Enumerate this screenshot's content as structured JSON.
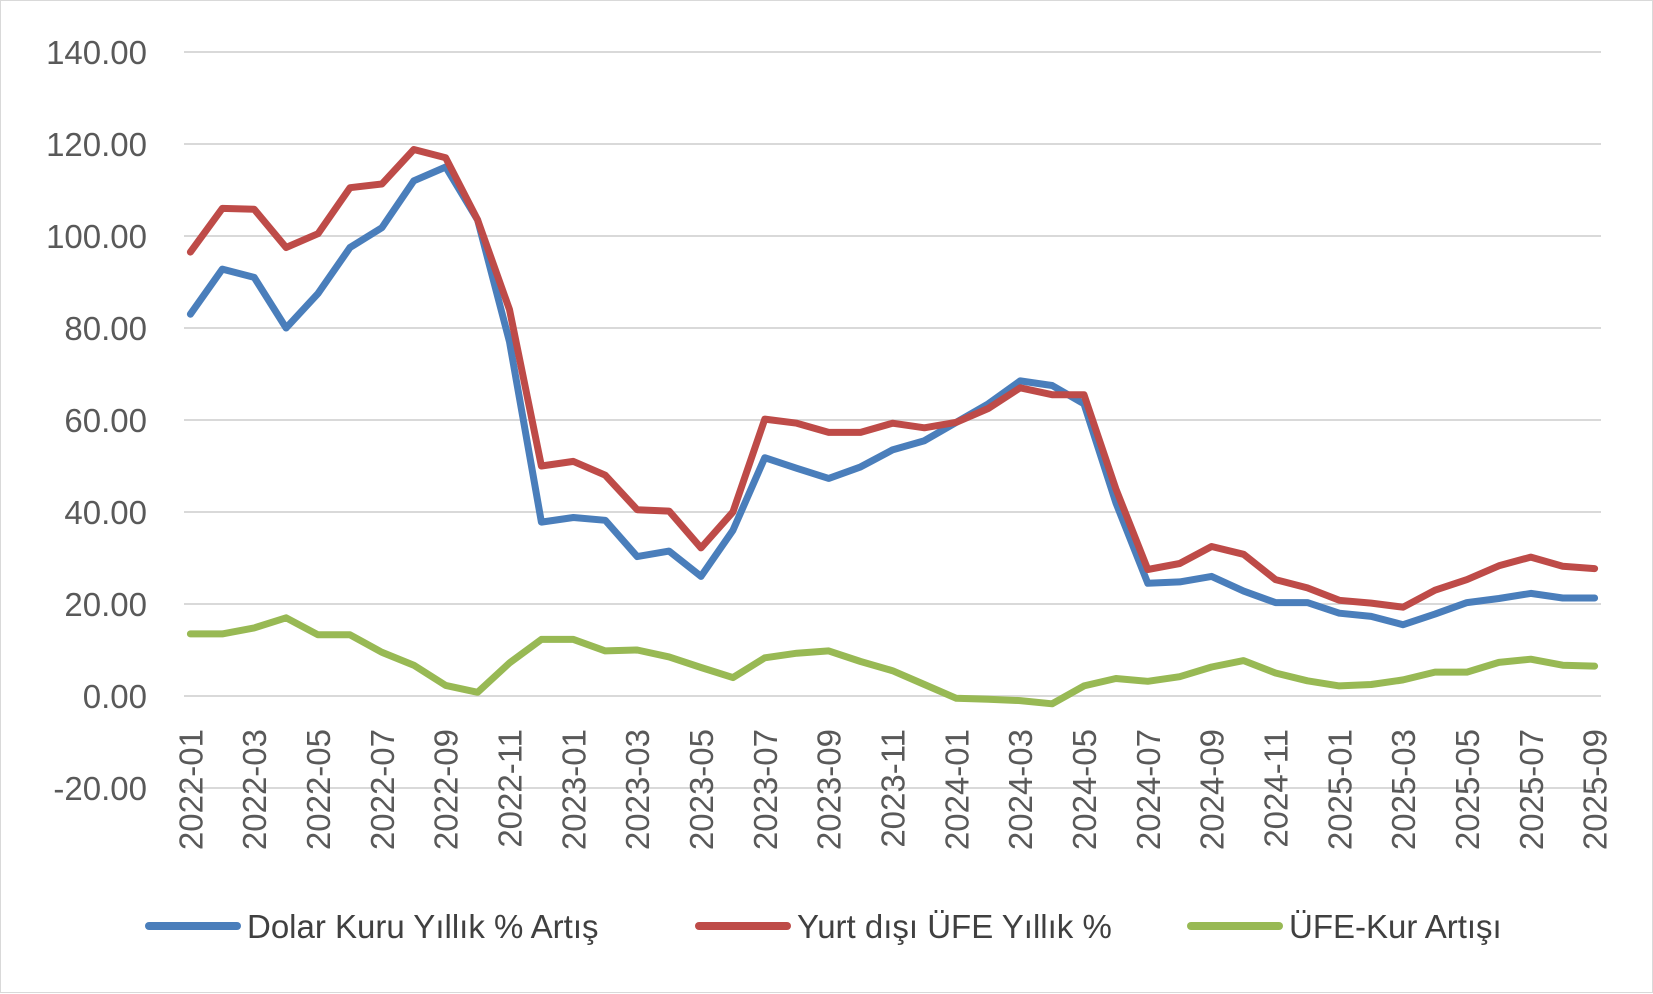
{
  "chart_data": {
    "type": "line",
    "title": "",
    "xlabel": "",
    "ylabel": "",
    "ylim": [
      -20,
      140
    ],
    "yticks": [
      "140.00",
      "120.00",
      "100.00",
      "80.00",
      "60.00",
      "40.00",
      "20.00",
      "0.00",
      "-20.00"
    ],
    "ytick_values": [
      140,
      120,
      100,
      80,
      60,
      40,
      20,
      0,
      -20
    ],
    "grid": "horizontal",
    "legend_position": "bottom",
    "x": [
      "2022-01",
      "2022-02",
      "2022-03",
      "2022-04",
      "2022-05",
      "2022-06",
      "2022-07",
      "2022-08",
      "2022-09",
      "2022-10",
      "2022-11",
      "2022-12",
      "2023-01",
      "2023-02",
      "2023-03",
      "2023-04",
      "2023-05",
      "2023-06",
      "2023-07",
      "2023-08",
      "2023-09",
      "2023-10",
      "2023-11",
      "2023-12",
      "2024-01",
      "2024-02",
      "2024-03",
      "2024-04",
      "2024-05",
      "2024-06",
      "2024-07",
      "2024-08",
      "2024-09",
      "2024-10",
      "2024-11",
      "2024-12",
      "2025-01",
      "2025-02",
      "2025-03",
      "2025-04",
      "2025-05",
      "2025-06",
      "2025-07",
      "2025-08",
      "2025-09"
    ],
    "xticks": [
      "2022-01",
      "2022-03",
      "2022-05",
      "2022-07",
      "2022-09",
      "2022-11",
      "2023-01",
      "2023-03",
      "2023-05",
      "2023-07",
      "2023-09",
      "2023-11",
      "2024-01",
      "2024-03",
      "2024-05",
      "2024-07",
      "2024-09",
      "2024-11",
      "2025-01",
      "2025-03",
      "2025-05",
      "2025-07",
      "2025-09"
    ],
    "series": [
      {
        "name": "Dolar Kuru Yıllık % Artış",
        "color": "#4a7ebb",
        "values": [
          83,
          92.8,
          91,
          80,
          87.5,
          97.5,
          101.8,
          112,
          115,
          103.5,
          77,
          37.8,
          38.8,
          38.2,
          30.3,
          31.5,
          26,
          36,
          51.8,
          49.5,
          47.3,
          49.8,
          53.5,
          55.5,
          59.5,
          63.5,
          68.5,
          67.5,
          63.5,
          42,
          24.5,
          24.8,
          26,
          22.8,
          20.3,
          20.3,
          18,
          17.3,
          15.5,
          17.8,
          20.3,
          21.2,
          22.3,
          21.3,
          21.3
        ]
      },
      {
        "name": "Yurt dışı ÜFE Yıllık %",
        "color": "#be4b48",
        "values": [
          96.5,
          106,
          105.8,
          97.5,
          100.5,
          110.5,
          111.3,
          118.8,
          117,
          103.5,
          84,
          50,
          51,
          48,
          40.5,
          40.2,
          32.2,
          40,
          60.2,
          59.3,
          57.3,
          57.3,
          59.3,
          58.3,
          59.5,
          62.5,
          67,
          65.5,
          65.5,
          45,
          27.5,
          28.8,
          32.5,
          30.8,
          25.3,
          23.5,
          20.8,
          20.2,
          19.3,
          23,
          25.3,
          28.3,
          30.2,
          28.2,
          27.7
        ]
      },
      {
        "name": "ÜFE-Kur Artışı",
        "color": "#98b954",
        "values": [
          13.5,
          13.5,
          14.8,
          17,
          13.3,
          13.3,
          9.5,
          6.7,
          2.3,
          0.8,
          7.2,
          12.3,
          12.3,
          9.8,
          10,
          8.5,
          6.2,
          4,
          8.3,
          9.3,
          9.8,
          7.5,
          5.5,
          2.5,
          -0.5,
          -0.7,
          -1,
          -1.7,
          2.2,
          3.8,
          3.2,
          4.2,
          6.3,
          7.7,
          5,
          3.3,
          2.2,
          2.5,
          3.5,
          5.2,
          5.2,
          7.3,
          8,
          6.7,
          6.5
        ]
      }
    ]
  }
}
